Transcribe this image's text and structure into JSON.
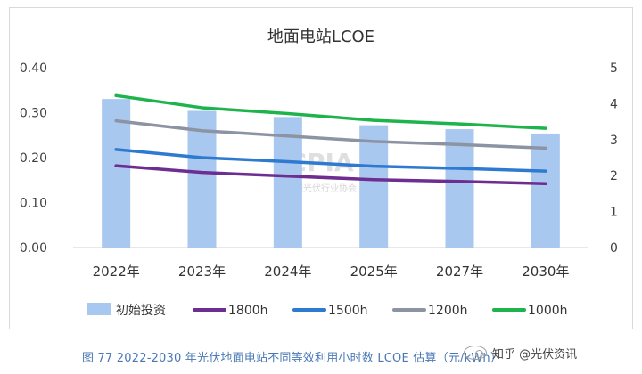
{
  "chart_data": {
    "type": "bar",
    "title": "地面电站LCOE",
    "categories": [
      "2022年",
      "2023年",
      "2024年",
      "2025年",
      "2027年",
      "2030年"
    ],
    "bar_series": {
      "name": "初始投资",
      "axis": "right",
      "values": [
        4.13,
        3.8,
        3.63,
        3.4,
        3.29,
        3.17
      ],
      "color": "#a9c8ef"
    },
    "series": [
      {
        "name": "1800h",
        "axis": "left",
        "values": [
          0.182,
          0.167,
          0.159,
          0.151,
          0.147,
          0.142
        ],
        "color": "#6e2d91"
      },
      {
        "name": "1500h",
        "axis": "left",
        "values": [
          0.218,
          0.2,
          0.191,
          0.181,
          0.176,
          0.17
        ],
        "color": "#2f7ad1"
      },
      {
        "name": "1200h",
        "axis": "left",
        "values": [
          0.282,
          0.26,
          0.248,
          0.236,
          0.229,
          0.221
        ],
        "color": "#8c94a3"
      },
      {
        "name": "1000h",
        "axis": "left",
        "values": [
          0.338,
          0.311,
          0.298,
          0.283,
          0.275,
          0.265
        ],
        "color": "#1fb34c"
      }
    ],
    "y_left": {
      "lim": [
        0,
        0.4
      ],
      "ticks": [
        "0.00",
        "0.10",
        "0.20",
        "0.30",
        "0.40"
      ]
    },
    "y_right": {
      "lim": [
        0,
        5
      ],
      "ticks": [
        "0",
        "1",
        "2",
        "3",
        "4",
        "5"
      ]
    },
    "grid": false,
    "legend_placement": "bottom",
    "watermark": "CPIA 中国光伏行业协会"
  },
  "caption": "图 77    2022-2030 年光伏地面电站不同等效利用小时数 LCOE 估算（元/kWh）",
  "source_label": "知乎 @光伏资讯"
}
